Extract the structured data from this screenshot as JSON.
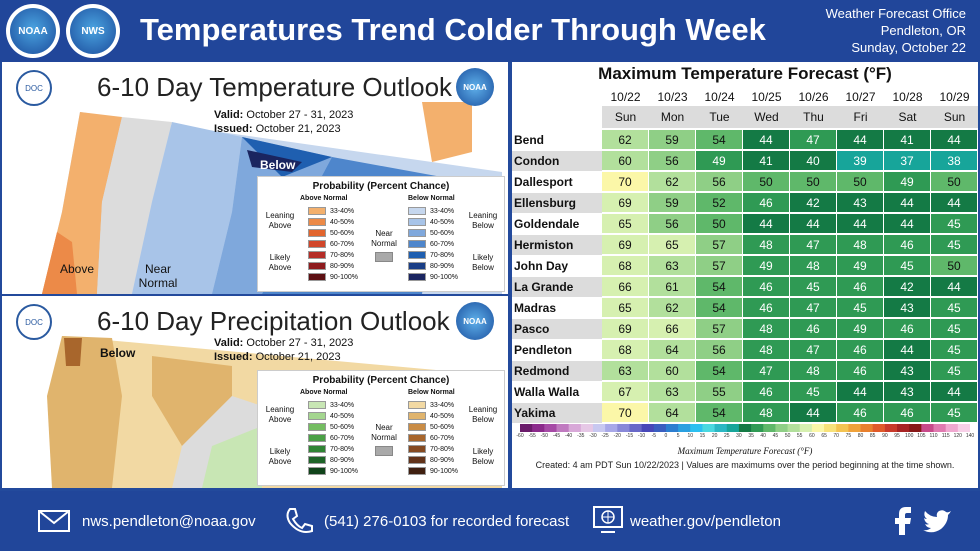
{
  "header": {
    "title": "Temperatures Trend Colder Through Week",
    "office": "Weather Forecast Office",
    "city": "Pendleton, OR",
    "date": "Sunday, October 22",
    "logo1": "NOAA",
    "logo2": "NWS"
  },
  "temp_outlook": {
    "title": "6-10 Day Temperature Outlook",
    "valid_label": "Valid:",
    "valid": "October 27 - 31, 2023",
    "issued_label": "Issued:",
    "issued": "October 21, 2023",
    "map_labels": [
      "Below",
      "Above",
      "Near Normal"
    ],
    "legend": {
      "title": "Probability (Percent Chance)",
      "left_head": "Above Normal",
      "right_head": "Below Normal",
      "left_items": [
        {
          "label": "33-40%",
          "color": "#f3b06d"
        },
        {
          "label": "40-50%",
          "color": "#ec8a48"
        },
        {
          "label": "50-60%",
          "color": "#e2652e"
        },
        {
          "label": "60-70%",
          "color": "#d1462a"
        },
        {
          "label": "70-80%",
          "color": "#b52d27"
        },
        {
          "label": "80-90%",
          "color": "#8e1b1e"
        },
        {
          "label": "90-100%",
          "color": "#5c0f12"
        }
      ],
      "right_items": [
        {
          "label": "33-40%",
          "color": "#c6d7ee"
        },
        {
          "label": "40-50%",
          "color": "#a8c4e8"
        },
        {
          "label": "50-60%",
          "color": "#7fa8dc"
        },
        {
          "label": "60-70%",
          "color": "#4e86cc"
        },
        {
          "label": "70-80%",
          "color": "#1f5fb0"
        },
        {
          "label": "80-90%",
          "color": "#1a3e86"
        },
        {
          "label": "90-100%",
          "color": "#1a2560"
        }
      ],
      "leaning_left": "Leaning Above",
      "likely_left": "Likely Above",
      "near": "Near Normal",
      "leaning_right": "Leaning Below",
      "likely_right": "Likely Below"
    }
  },
  "precip_outlook": {
    "title": "6-10 Day Precipitation Outlook",
    "valid_label": "Valid:",
    "valid": "October 27 - 31, 2023",
    "issued_label": "Issued:",
    "issued": "October 21, 2023",
    "map_labels": [
      "Below"
    ],
    "legend": {
      "title": "Probability (Percent Chance)",
      "left_head": "Above Normal",
      "right_head": "Below Normal",
      "left_items": [
        {
          "label": "33-40%",
          "color": "#c8e6b4"
        },
        {
          "label": "40-50%",
          "color": "#a4d68f"
        },
        {
          "label": "50-60%",
          "color": "#74bd61"
        },
        {
          "label": "60-70%",
          "color": "#4aa046"
        },
        {
          "label": "70-80%",
          "color": "#2f8434"
        },
        {
          "label": "80-90%",
          "color": "#1e6428"
        },
        {
          "label": "90-100%",
          "color": "#10431a"
        }
      ],
      "right_items": [
        {
          "label": "33-40%",
          "color": "#f2d9a3"
        },
        {
          "label": "40-50%",
          "color": "#e0b46d"
        },
        {
          "label": "50-60%",
          "color": "#c98c45"
        },
        {
          "label": "60-70%",
          "color": "#a8662c"
        },
        {
          "label": "70-80%",
          "color": "#854a22"
        },
        {
          "label": "80-90%",
          "color": "#62331a"
        },
        {
          "label": "90-100%",
          "color": "#3f1f10"
        }
      ],
      "leaning_left": "Leaning Above",
      "likely_left": "Likely Above",
      "near": "Near Normal",
      "leaning_right": "Leaning Below",
      "likely_right": "Likely Below"
    }
  },
  "forecast": {
    "title": "Maximum Temperature Forecast (°F)",
    "dates": [
      "10/22",
      "10/23",
      "10/24",
      "10/25",
      "10/26",
      "10/27",
      "10/28",
      "10/29"
    ],
    "days": [
      "Sun",
      "Mon",
      "Tue",
      "Wed",
      "Thu",
      "Fri",
      "Sat",
      "Sun"
    ],
    "rows": [
      {
        "city": "Bend",
        "values": [
          62,
          59,
          54,
          44,
          47,
          44,
          41,
          44
        ]
      },
      {
        "city": "Condon",
        "values": [
          60,
          56,
          49,
          41,
          40,
          39,
          37,
          38
        ]
      },
      {
        "city": "Dallesport",
        "values": [
          70,
          62,
          56,
          50,
          50,
          50,
          49,
          50
        ]
      },
      {
        "city": "Ellensburg",
        "values": [
          69,
          59,
          52,
          46,
          42,
          43,
          44,
          44
        ]
      },
      {
        "city": "Goldendale",
        "values": [
          65,
          56,
          50,
          44,
          44,
          44,
          44,
          45
        ]
      },
      {
        "city": "Hermiston",
        "values": [
          69,
          65,
          57,
          48,
          47,
          48,
          46,
          45
        ]
      },
      {
        "city": "John Day",
        "values": [
          68,
          63,
          57,
          49,
          48,
          49,
          45,
          50
        ]
      },
      {
        "city": "La Grande",
        "values": [
          66,
          61,
          54,
          46,
          45,
          46,
          42,
          44
        ]
      },
      {
        "city": "Madras",
        "values": [
          65,
          62,
          54,
          46,
          47,
          45,
          43,
          45
        ]
      },
      {
        "city": "Pasco",
        "values": [
          69,
          66,
          57,
          48,
          46,
          49,
          46,
          45
        ]
      },
      {
        "city": "Pendleton",
        "values": [
          68,
          64,
          56,
          48,
          47,
          46,
          44,
          45
        ]
      },
      {
        "city": "Redmond",
        "values": [
          63,
          60,
          54,
          47,
          48,
          46,
          43,
          45
        ]
      },
      {
        "city": "Walla Walla",
        "values": [
          67,
          63,
          55,
          46,
          45,
          44,
          43,
          44
        ]
      },
      {
        "city": "Yakima",
        "values": [
          70,
          64,
          54,
          48,
          44,
          46,
          46,
          45
        ]
      }
    ],
    "scale_ticks": [
      "-60",
      "-55",
      "-50",
      "-45",
      "-40",
      "-35",
      "-30",
      "-25",
      "-20",
      "-15",
      "-10",
      "-5",
      "0",
      "5",
      "10",
      "15",
      "20",
      "25",
      "30",
      "35",
      "40",
      "45",
      "50",
      "55",
      "60",
      "65",
      "70",
      "75",
      "80",
      "85",
      "90",
      "95",
      "100",
      "105",
      "110",
      "115",
      "120",
      "140"
    ],
    "scale_title": "Maximum Temperature Forecast (°F)",
    "created": "Created: 4 am PDT Sun 10/22/2023 | Values are maximums over the period beginning at the time shown."
  },
  "footer": {
    "email": "nws.pendleton@noaa.gov",
    "phone": "(541) 276-0103 for recorded forecast",
    "web": "weather.gov/pendleton",
    "email_icon": "envelope-icon",
    "phone_icon": "phone-icon",
    "web_icon": "globe-icon"
  }
}
